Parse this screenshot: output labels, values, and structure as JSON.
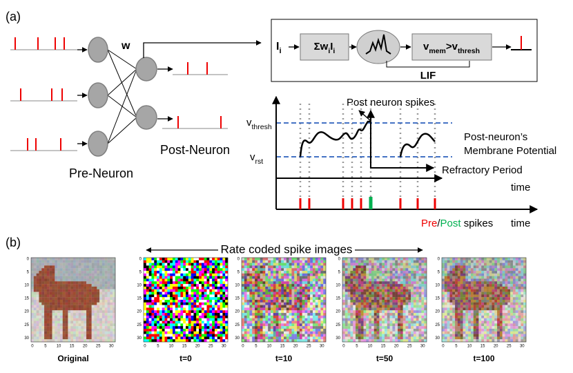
{
  "panel_a": {
    "label": "(a)",
    "weight_label": "w",
    "post_neuron_label": "Post-Neuron",
    "pre_neuron_label": "Pre-Neuron",
    "lif": {
      "input": [
        {
          "text": "I"
        },
        {
          "sub": "i"
        }
      ],
      "sum": [
        {
          "text": "Σw"
        },
        {
          "sub": "i"
        },
        {
          "text": "I"
        },
        {
          "sub": "i"
        }
      ],
      "condition": [
        {
          "text": "v"
        },
        {
          "sub": "mem"
        },
        {
          "text": ">v"
        },
        {
          "sub": "thresh"
        }
      ],
      "label": "LIF"
    },
    "membrane_plot": {
      "post_spikes_label": "Post neuron spikes",
      "v_thresh": [
        {
          "text": "v"
        },
        {
          "sub": "thresh"
        }
      ],
      "v_rst": [
        {
          "text": "v"
        },
        {
          "sub": "rst"
        }
      ],
      "potential_label": [
        "Post-neuron’s",
        "Membrane Potential"
      ],
      "refractory_label": "Refractory Period",
      "time_label": "time"
    },
    "spike_plot": {
      "time_label": "time",
      "legend": [
        "Pre",
        "/",
        "Post",
        " spikes"
      ]
    }
  },
  "panel_b": {
    "label": "(b)",
    "title": "Rate coded spike images",
    "image_ticks": [
      0,
      5,
      10,
      15,
      20,
      25,
      30
    ],
    "images": [
      {
        "caption": "Original"
      },
      {
        "caption": "t=0"
      },
      {
        "caption": "t=10"
      },
      {
        "caption": "t=50"
      },
      {
        "caption": "t=100"
      }
    ]
  }
}
